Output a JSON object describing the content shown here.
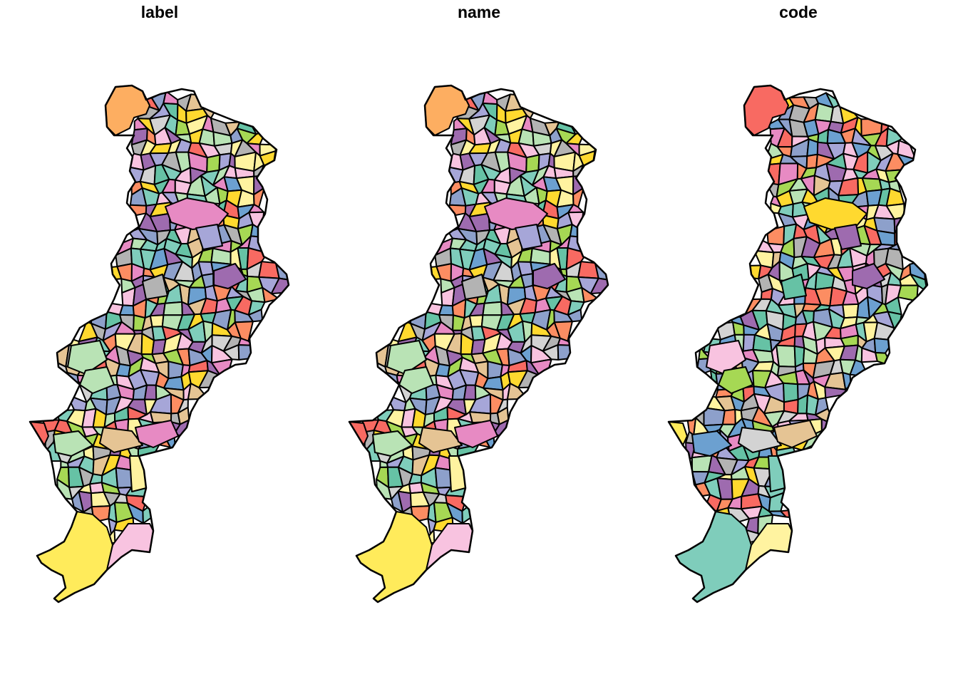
{
  "panels": [
    {
      "title": "label",
      "palette": [
        "#66C2A5",
        "#FC8D62",
        "#8DA0CB",
        "#E78AC3",
        "#A6D854",
        "#FFD92F",
        "#E5C494",
        "#B3B3B3",
        "#F86A62",
        "#9E6BAF",
        "#FFF3A0",
        "#B9E3B5",
        "#6CA0D0",
        "#F8C3E0",
        "#D3D3D3",
        "#7FCDBB",
        "#A6A6D8"
      ],
      "big_regions": {
        "north_blob": "#FDAE61",
        "south_blob": "#FFEB5B",
        "southeast_blob": "#F8C3E0",
        "west_tip": "#F86A62"
      }
    },
    {
      "title": "name",
      "palette": [
        "#66C2A5",
        "#FC8D62",
        "#8DA0CB",
        "#E78AC3",
        "#A6D854",
        "#FFD92F",
        "#E5C494",
        "#B3B3B3",
        "#F86A62",
        "#9E6BAF",
        "#FFF3A0",
        "#B9E3B5",
        "#6CA0D0",
        "#F8C3E0",
        "#D3D3D3",
        "#7FCDBB",
        "#A6A6D8"
      ],
      "big_regions": {
        "north_blob": "#FDAE61",
        "south_blob": "#FFEB5B",
        "southeast_blob": "#F8C3E0",
        "west_tip": "#F86A62"
      }
    },
    {
      "title": "code",
      "palette": [
        "#66C2A5",
        "#FC8D62",
        "#8DA0CB",
        "#E78AC3",
        "#A6D854",
        "#FFD92F",
        "#E5C494",
        "#B3B3B3",
        "#F86A62",
        "#9E6BAF",
        "#FFF3A0",
        "#B9E3B5",
        "#6CA0D0",
        "#F8C3E0",
        "#D3D3D3",
        "#7FCDBB",
        "#A6A6D8"
      ],
      "big_regions": {
        "north_blob": "#F86A62",
        "south_blob": "#7FCDBB",
        "southeast_blob": "#FFF3A0",
        "west_tip": "#FFEB5B"
      }
    }
  ]
}
